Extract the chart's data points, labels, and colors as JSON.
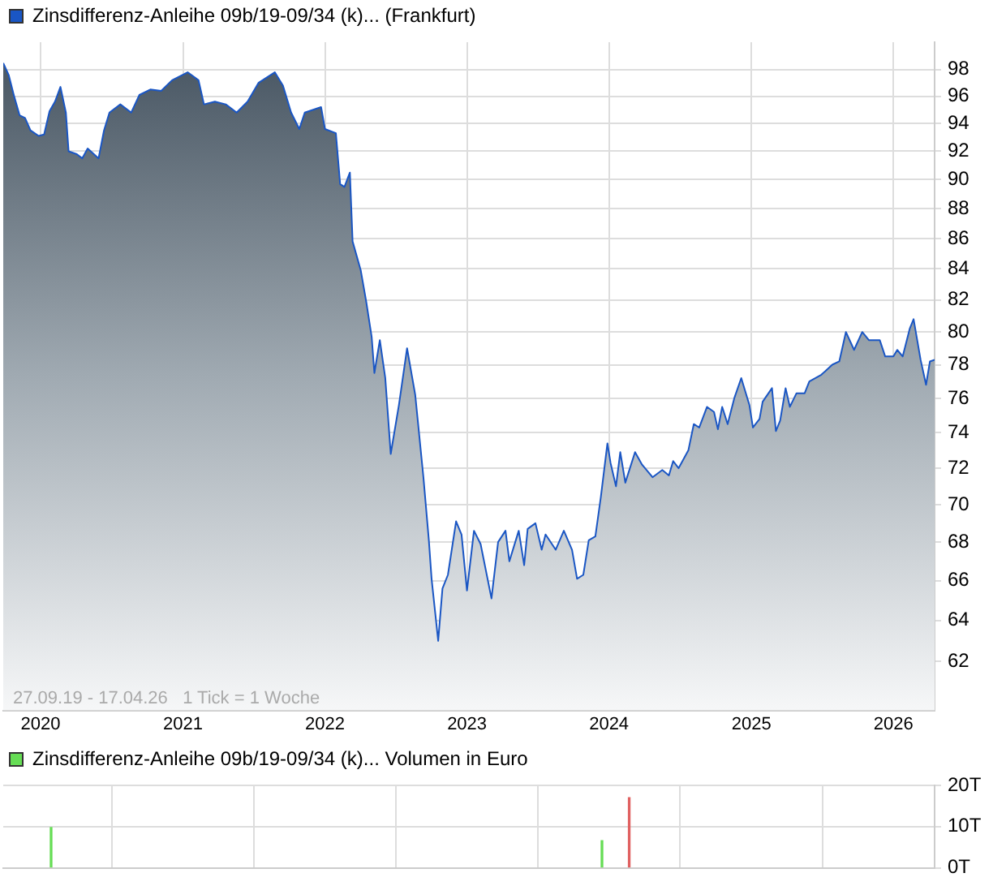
{
  "chart_data": [
    {
      "type": "area",
      "legend": "top left",
      "log": "y",
      "grid": true,
      "annotations": [
        "27.09.19 - 17.04.26   1 Tick = 1 Woche"
      ],
      "xlim": [
        "2019-09-27",
        "2026-04-17"
      ],
      "xticks": [
        {
          "value": "2020-01-01",
          "label": "2020"
        },
        {
          "value": "2021-01-01",
          "label": "2021"
        },
        {
          "value": "2022-01-01",
          "label": "2022"
        },
        {
          "value": "2023-01-01",
          "label": "2023"
        },
        {
          "value": "2024-01-01",
          "label": "2024"
        },
        {
          "value": "2025-01-01",
          "label": "2025"
        },
        {
          "value": "2026-01-01",
          "label": "2026"
        }
      ],
      "ylim": [
        59.7,
        100.1
      ],
      "yticks": [
        62,
        64,
        66,
        68,
        70,
        72,
        74,
        76,
        78,
        80,
        82,
        84,
        86,
        88,
        90,
        92,
        94,
        96,
        98
      ],
      "series": [
        {
          "name": "Zinsdifferenz-Anleihe 09b/19-09/34 (k)... (Frankfurt)",
          "color": "#1a56c4",
          "x": [
            "2019-09-27",
            "2019-10-11",
            "2019-10-25",
            "2019-11-08",
            "2019-11-22",
            "2019-12-06",
            "2019-12-27",
            "2020-01-10",
            "2020-01-24",
            "2020-02-07",
            "2020-02-21",
            "2020-03-06",
            "2020-03-13",
            "2020-04-03",
            "2020-04-17",
            "2020-05-01",
            "2020-05-29",
            "2020-06-12",
            "2020-06-26",
            "2020-07-24",
            "2020-08-21",
            "2020-09-11",
            "2020-10-09",
            "2020-11-06",
            "2020-12-04",
            "2021-01-13",
            "2021-02-10",
            "2021-02-24",
            "2021-03-24",
            "2021-04-21",
            "2021-05-19",
            "2021-06-16",
            "2021-07-14",
            "2021-08-25",
            "2021-09-15",
            "2021-10-06",
            "2021-10-27",
            "2021-11-10",
            "2021-12-22",
            "2022-01-01",
            "2022-01-29",
            "2022-02-09",
            "2022-02-20",
            "2022-03-06",
            "2022-03-13",
            "2022-04-03",
            "2022-04-17",
            "2022-05-01",
            "2022-05-08",
            "2022-05-22",
            "2022-06-05",
            "2022-06-19",
            "2022-07-10",
            "2022-07-31",
            "2022-08-21",
            "2022-09-11",
            "2022-09-25",
            "2022-10-02",
            "2022-10-19",
            "2022-10-30",
            "2022-11-13",
            "2022-12-04",
            "2022-12-18",
            "2023-01-01",
            "2023-01-19",
            "2023-02-05",
            "2023-03-05",
            "2023-03-22",
            "2023-04-10",
            "2023-04-20",
            "2023-05-14",
            "2023-05-28",
            "2023-06-06",
            "2023-06-26",
            "2023-07-12",
            "2023-07-22",
            "2023-08-17",
            "2023-09-07",
            "2023-09-28",
            "2023-10-11",
            "2023-10-27",
            "2023-11-10",
            "2023-11-27",
            "2023-12-11",
            "2023-12-28",
            "2024-01-05",
            "2024-01-19",
            "2024-01-30",
            "2024-02-12",
            "2024-03-08",
            "2024-03-26",
            "2024-04-22",
            "2024-05-17",
            "2024-06-03",
            "2024-06-14",
            "2024-06-28",
            "2024-07-23",
            "2024-08-06",
            "2024-08-20",
            "2024-09-09",
            "2024-09-27",
            "2024-10-07",
            "2024-10-18",
            "2024-11-01",
            "2024-11-18",
            "2024-12-06",
            "2024-12-27",
            "2025-01-05",
            "2025-01-22",
            "2025-01-30",
            "2025-02-23",
            "2025-03-05",
            "2025-03-16",
            "2025-03-30",
            "2025-04-10",
            "2025-04-27",
            "2025-05-18",
            "2025-05-30",
            "2025-06-30",
            "2025-07-28",
            "2025-08-15",
            "2025-09-01",
            "2025-09-22",
            "2025-10-13",
            "2025-10-30",
            "2025-11-27",
            "2025-12-11",
            "2026-01-01",
            "2026-01-11",
            "2026-01-25",
            "2026-02-12",
            "2026-02-22",
            "2026-03-12",
            "2026-03-26",
            "2026-04-05",
            "2026-04-17"
          ],
          "values": [
            98.5,
            97.6,
            96,
            94.6,
            94.4,
            93.5,
            93.1,
            93.2,
            94.9,
            95.6,
            96.7,
            94.8,
            92,
            91.8,
            91.5,
            92.2,
            91.5,
            93.5,
            94.8,
            95.4,
            94.8,
            96.1,
            96.5,
            96.4,
            97.2,
            97.8,
            97.2,
            95.4,
            95.6,
            95.4,
            94.8,
            95.6,
            97,
            97.8,
            96.8,
            94.8,
            93.6,
            94.8,
            95.2,
            93.6,
            93.3,
            89.7,
            89.5,
            90.5,
            85.8,
            83.9,
            81.9,
            79.7,
            77.5,
            79.5,
            77.2,
            72.8,
            75.6,
            79,
            76.2,
            71.5,
            68.1,
            66.1,
            63,
            65.6,
            66.3,
            69.1,
            68.4,
            65.5,
            68.6,
            67.9,
            65.1,
            68,
            68.6,
            67,
            68.6,
            66.8,
            68.7,
            69,
            67.6,
            68.4,
            67.6,
            68.6,
            67.6,
            66.1,
            66.3,
            68.1,
            68.3,
            70.4,
            73.4,
            72.3,
            71,
            72.9,
            71.2,
            72.9,
            72.2,
            71.5,
            71.9,
            71.6,
            72.4,
            72,
            73,
            74.5,
            74.3,
            75.5,
            75.2,
            74.2,
            75.5,
            74.5,
            76,
            77.2,
            75.6,
            74.3,
            74.8,
            75.8,
            76.6,
            74.1,
            74.7,
            76.6,
            75.5,
            76.3,
            76.3,
            77,
            77.4,
            78,
            78.2,
            80,
            78.9,
            80,
            79.5,
            79.5,
            78.5,
            78.5,
            78.9,
            78.5,
            80.2,
            80.8,
            78.3,
            76.8,
            78.2,
            78.3
          ]
        }
      ]
    },
    {
      "type": "bar",
      "legend": "top left",
      "grid": true,
      "tick_labels": "y",
      "xlim": [
        "2019-09-27",
        "2026-04-17"
      ],
      "xticks": [
        {
          "value": "2020-01-01",
          "label": null
        },
        {
          "value": "2021-01-01",
          "label": null
        },
        {
          "value": "2022-01-01",
          "label": null
        },
        {
          "value": "2023-01-01",
          "label": null
        },
        {
          "value": "2024-01-01",
          "label": null
        },
        {
          "value": "2025-01-01",
          "label": null
        },
        {
          "value": "2026-01-01",
          "label": null
        }
      ],
      "ylim": [
        0,
        20
      ],
      "yticks": [
        {
          "value": 0,
          "label": "0T"
        },
        {
          "value": 10,
          "label": "10T"
        },
        {
          "value": 20,
          "label": "20T"
        }
      ],
      "series": [
        {
          "name": "Zinsdifferenz-Anleihe 09b/19-09/34 (k)... Volumen in Euro",
          "color": "#66dd55",
          "colors": [
            "#66dd55",
            "#66dd55",
            "#e06060"
          ],
          "x": [
            "2020-01-28",
            "2023-12-14",
            "2024-02-22"
          ],
          "values": [
            9.8,
            6.6,
            17
          ]
        }
      ]
    }
  ]
}
